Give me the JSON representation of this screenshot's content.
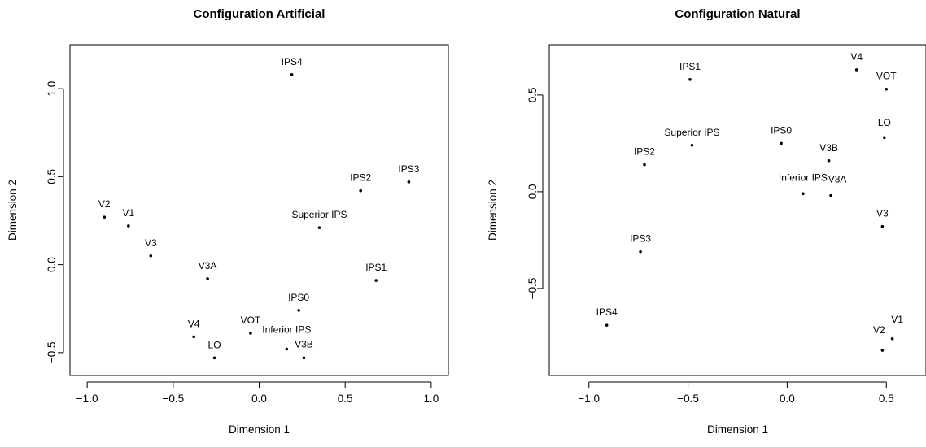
{
  "chart_data": [
    {
      "type": "scatter",
      "title": "Configuration Artificial",
      "xlabel": "Dimension 1",
      "ylabel": "Dimension 2",
      "xlim": [
        -1.1,
        1.1
      ],
      "ylim": [
        -0.63,
        1.25
      ],
      "xticks": [
        -1.0,
        -0.5,
        0.0,
        0.5,
        1.0
      ],
      "xtick_labels": [
        "−1.0",
        "−0.5",
        "0.0",
        "0.5",
        "1.0"
      ],
      "yticks": [
        -0.5,
        0.0,
        0.5,
        1.0
      ],
      "ytick_labels": [
        "−0.5",
        "0.0",
        "0.5",
        "1.0"
      ],
      "grid": false,
      "points": [
        {
          "label": "IPS4",
          "x": 0.19,
          "y": 1.08
        },
        {
          "label": "IPS3",
          "x": 0.87,
          "y": 0.47
        },
        {
          "label": "IPS2",
          "x": 0.59,
          "y": 0.42
        },
        {
          "label": "Superior IPS",
          "x": 0.35,
          "y": 0.21
        },
        {
          "label": "IPS1",
          "x": 0.68,
          "y": -0.09
        },
        {
          "label": "IPS0",
          "x": 0.23,
          "y": -0.26
        },
        {
          "label": "V2",
          "x": -0.9,
          "y": 0.27
        },
        {
          "label": "V1",
          "x": -0.76,
          "y": 0.22
        },
        {
          "label": "V3",
          "x": -0.63,
          "y": 0.05
        },
        {
          "label": "V3A",
          "x": -0.3,
          "y": -0.08
        },
        {
          "label": "V4",
          "x": -0.38,
          "y": -0.41
        },
        {
          "label": "VOT",
          "x": -0.05,
          "y": -0.39
        },
        {
          "label": "LO",
          "x": -0.26,
          "y": -0.53
        },
        {
          "label": "Inferior IPS",
          "x": 0.16,
          "y": -0.48
        },
        {
          "label": "V3B",
          "x": 0.26,
          "y": -0.53
        }
      ]
    },
    {
      "type": "scatter",
      "title": "Configuration Natural",
      "xlabel": "Dimension 1",
      "ylabel": "Dimension 2",
      "xlim": [
        -1.2,
        0.7
      ],
      "ylim": [
        -0.95,
        0.76
      ],
      "xticks": [
        -1.0,
        -0.5,
        0.0,
        0.5
      ],
      "xtick_labels": [
        "−1.0",
        "−0.5",
        "0.0",
        "0.5"
      ],
      "yticks": [
        -0.5,
        0.0,
        0.5
      ],
      "ytick_labels": [
        "−0.5",
        "0.0",
        "0.5"
      ],
      "grid": false,
      "points": [
        {
          "label": "IPS1",
          "x": -0.49,
          "y": 0.58
        },
        {
          "label": "V4",
          "x": 0.35,
          "y": 0.63
        },
        {
          "label": "VOT",
          "x": 0.5,
          "y": 0.53
        },
        {
          "label": "Superior IPS",
          "x": -0.48,
          "y": 0.24
        },
        {
          "label": "IPS0",
          "x": -0.03,
          "y": 0.25
        },
        {
          "label": "LO",
          "x": 0.49,
          "y": 0.28
        },
        {
          "label": "IPS2",
          "x": -0.72,
          "y": 0.14
        },
        {
          "label": "V3B",
          "x": 0.21,
          "y": 0.16
        },
        {
          "label": "Inferior IPS",
          "x": 0.08,
          "y": -0.01
        },
        {
          "label": "V3A",
          "x": 0.22,
          "y": -0.02
        },
        {
          "label": "V3",
          "x": 0.48,
          "y": -0.18
        },
        {
          "label": "IPS3",
          "x": -0.74,
          "y": -0.31
        },
        {
          "label": "IPS4",
          "x": -0.91,
          "y": -0.69
        },
        {
          "label": "V1",
          "x": 0.53,
          "y": -0.76
        },
        {
          "label": "V2",
          "x": 0.48,
          "y": -0.82
        }
      ]
    }
  ]
}
